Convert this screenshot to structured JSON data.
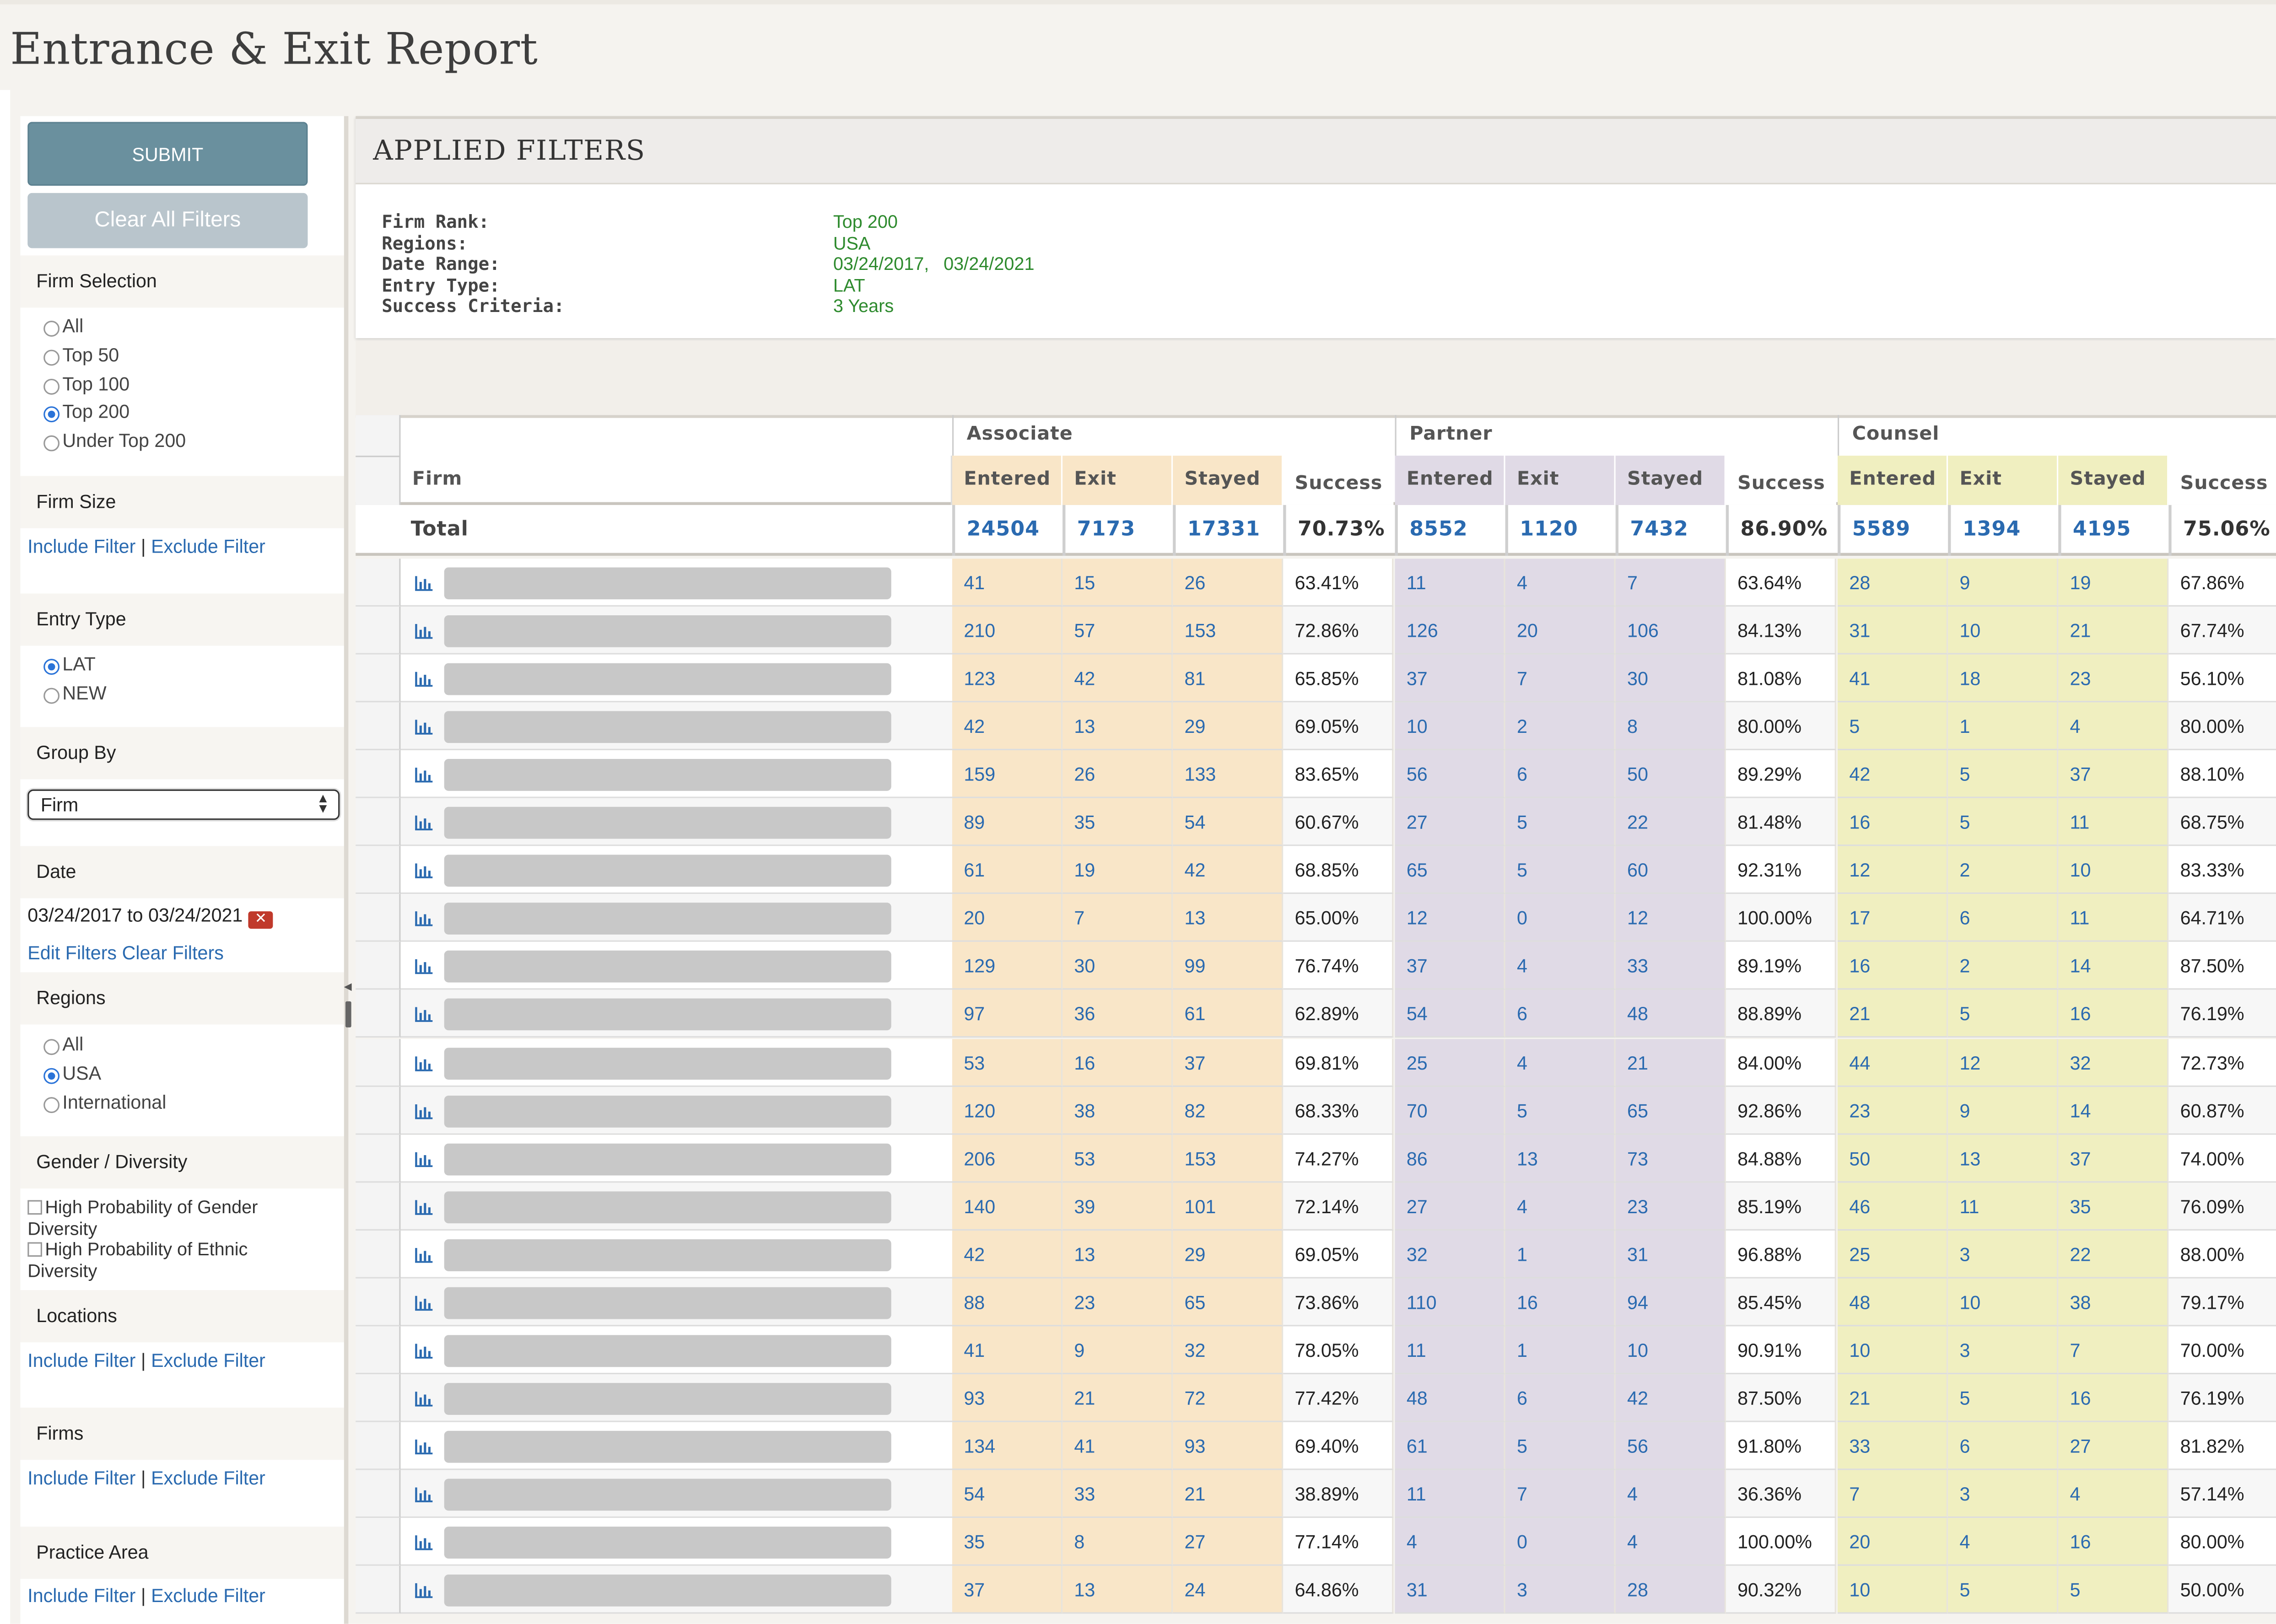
{
  "page": {
    "title": "Entrance & Exit Report"
  },
  "sidebar": {
    "submit_label": "SUBMIT",
    "clear_label": "Clear All Filters",
    "firm_selection": {
      "heading": "Firm Selection",
      "options": [
        "All",
        "Top 50",
        "Top 100",
        "Top 200",
        "Under Top 200"
      ],
      "selected": "Top 200"
    },
    "firm_size": {
      "heading": "Firm Size",
      "include": "Include Filter",
      "sep": "|",
      "exclude": "Exclude Filter"
    },
    "entry_type": {
      "heading": "Entry Type",
      "options": [
        "LAT",
        "NEW"
      ],
      "selected": "LAT"
    },
    "group_by": {
      "heading": "Group By",
      "value": "Firm"
    },
    "date": {
      "heading": "Date",
      "range": "03/24/2017 to 03/24/2021",
      "edit": "Edit Filters",
      "clear": "Clear Filters"
    },
    "regions": {
      "heading": "Regions",
      "options": [
        "All",
        "USA",
        "International"
      ],
      "selected": "USA"
    },
    "gender": {
      "heading": "Gender / Diversity",
      "gender_line1": "High Probability of Gender",
      "gender_line2": "Diversity",
      "ethnic_line1": "High Probability of Ethnic",
      "ethnic_line2": "Diversity"
    },
    "locations": {
      "heading": "Locations",
      "include": "Include Filter",
      "sep": "|",
      "exclude": "Exclude Filter"
    },
    "firms": {
      "heading": "Firms",
      "include": "Include Filter",
      "sep": "|",
      "exclude": "Exclude Filter"
    },
    "practice": {
      "heading": "Practice Area",
      "include": "Include Filter",
      "sep": "|",
      "exclude": "Exclude Filter"
    }
  },
  "applied_filters": {
    "heading": "APPLIED FILTERS",
    "labels": [
      "Firm Rank:",
      "Regions:",
      "Date Range:",
      "Entry Type:",
      "Success Criteria:"
    ],
    "values": [
      "Top 200",
      "USA",
      "03/24/2017,",
      "LAT",
      "3 Years"
    ],
    "date_end": "03/24/2021"
  },
  "table": {
    "firm_header": "Firm",
    "groups": [
      "Associate",
      "Partner",
      "Counsel"
    ],
    "subheaders": [
      "Entered",
      "Exit",
      "Stayed",
      "Success"
    ],
    "total_label": "Total",
    "totals": [
      "24504",
      "7173",
      "17331",
      "70.73%",
      "8552",
      "1120",
      "7432",
      "86.90%",
      "5589",
      "1394",
      "4195",
      "75.06%"
    ],
    "rows": [
      [
        "41",
        "15",
        "26",
        "63.41%",
        "11",
        "4",
        "7",
        "63.64%",
        "28",
        "9",
        "19",
        "67.86%"
      ],
      [
        "210",
        "57",
        "153",
        "72.86%",
        "126",
        "20",
        "106",
        "84.13%",
        "31",
        "10",
        "21",
        "67.74%"
      ],
      [
        "123",
        "42",
        "81",
        "65.85%",
        "37",
        "7",
        "30",
        "81.08%",
        "41",
        "18",
        "23",
        "56.10%"
      ],
      [
        "42",
        "13",
        "29",
        "69.05%",
        "10",
        "2",
        "8",
        "80.00%",
        "5",
        "1",
        "4",
        "80.00%"
      ],
      [
        "159",
        "26",
        "133",
        "83.65%",
        "56",
        "6",
        "50",
        "89.29%",
        "42",
        "5",
        "37",
        "88.10%"
      ],
      [
        "89",
        "35",
        "54",
        "60.67%",
        "27",
        "5",
        "22",
        "81.48%",
        "16",
        "5",
        "11",
        "68.75%"
      ],
      [
        "61",
        "19",
        "42",
        "68.85%",
        "65",
        "5",
        "60",
        "92.31%",
        "12",
        "2",
        "10",
        "83.33%"
      ],
      [
        "20",
        "7",
        "13",
        "65.00%",
        "12",
        "0",
        "12",
        "100.00%",
        "17",
        "6",
        "11",
        "64.71%"
      ],
      [
        "129",
        "30",
        "99",
        "76.74%",
        "37",
        "4",
        "33",
        "89.19%",
        "16",
        "2",
        "14",
        "87.50%"
      ],
      [
        "97",
        "36",
        "61",
        "62.89%",
        "54",
        "6",
        "48",
        "88.89%",
        "21",
        "5",
        "16",
        "76.19%"
      ],
      [
        "53",
        "16",
        "37",
        "69.81%",
        "25",
        "4",
        "21",
        "84.00%",
        "44",
        "12",
        "32",
        "72.73%"
      ],
      [
        "120",
        "38",
        "82",
        "68.33%",
        "70",
        "5",
        "65",
        "92.86%",
        "23",
        "9",
        "14",
        "60.87%"
      ],
      [
        "206",
        "53",
        "153",
        "74.27%",
        "86",
        "13",
        "73",
        "84.88%",
        "50",
        "13",
        "37",
        "74.00%"
      ],
      [
        "140",
        "39",
        "101",
        "72.14%",
        "27",
        "4",
        "23",
        "85.19%",
        "46",
        "11",
        "35",
        "76.09%"
      ],
      [
        "42",
        "13",
        "29",
        "69.05%",
        "32",
        "1",
        "31",
        "96.88%",
        "25",
        "3",
        "22",
        "88.00%"
      ],
      [
        "88",
        "23",
        "65",
        "73.86%",
        "110",
        "16",
        "94",
        "85.45%",
        "48",
        "10",
        "38",
        "79.17%"
      ],
      [
        "41",
        "9",
        "32",
        "78.05%",
        "11",
        "1",
        "10",
        "90.91%",
        "10",
        "3",
        "7",
        "70.00%"
      ],
      [
        "93",
        "21",
        "72",
        "77.42%",
        "48",
        "6",
        "42",
        "87.50%",
        "21",
        "5",
        "16",
        "76.19%"
      ],
      [
        "134",
        "41",
        "93",
        "69.40%",
        "61",
        "5",
        "56",
        "91.80%",
        "33",
        "6",
        "27",
        "81.82%"
      ],
      [
        "54",
        "33",
        "21",
        "38.89%",
        "11",
        "7",
        "4",
        "36.36%",
        "7",
        "3",
        "4",
        "57.14%"
      ],
      [
        "35",
        "8",
        "27",
        "77.14%",
        "4",
        "0",
        "4",
        "100.00%",
        "20",
        "4",
        "16",
        "80.00%"
      ],
      [
        "37",
        "13",
        "24",
        "64.86%",
        "31",
        "3",
        "28",
        "90.32%",
        "10",
        "5",
        "5",
        "50.00%"
      ]
    ]
  },
  "colors": {
    "associate_bg": "#f9e6c8",
    "partner_bg": "#e0dae6",
    "counsel_bg": "#f0efc0",
    "link": "#2a6ab0",
    "submit": "#6a909e",
    "filter_value": "#2d8a2d"
  },
  "icons": {
    "row_chart": "bar-chart-icon",
    "date_clear": "close-icon"
  }
}
